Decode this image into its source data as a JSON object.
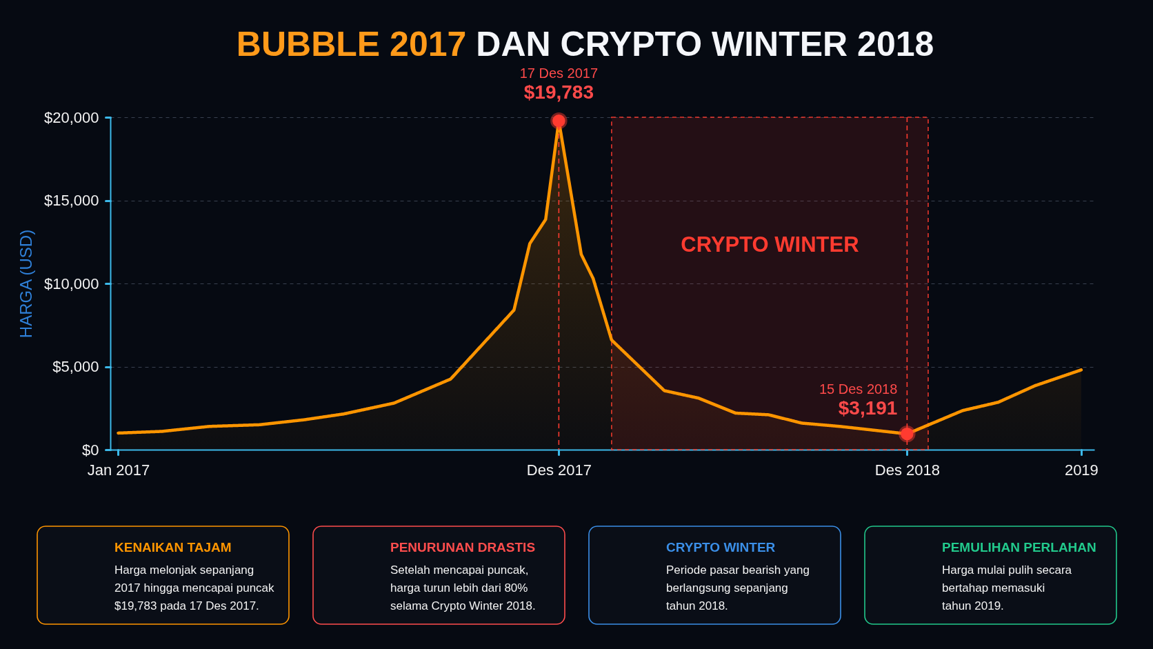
{
  "chart_data": [
    {
      "type": "area",
      "title": "BUBBLE 2017 DAN CRYPTO WINTER 2018",
      "ylabel": "HARGA (USD)",
      "x": [
        "2017-01-01",
        "2017-02-03",
        "2017-03-11",
        "2017-04-18",
        "2017-05-22",
        "2017-06-21",
        "2017-07-29",
        "2017-09-10",
        "2017-10-28",
        "2017-11-09",
        "2017-11-21",
        "2017-12-01",
        "2017-12-18",
        "2017-12-27",
        "2018-01-10",
        "2018-02-19",
        "2018-03-17",
        "2018-04-14",
        "2018-05-09",
        "2018-06-03",
        "2018-07-02",
        "2018-08-22",
        "2018-10-03",
        "2018-10-30",
        "2018-11-27",
        "2019-01-01"
      ],
      "series": [
        {
          "type": "area",
          "color": "#ff9500",
          "values": [
            1000,
            1100,
            1400,
            1500,
            1800,
            2150,
            2800,
            4250,
            8400,
            12400,
            13850,
            19783,
            11750,
            10300,
            6600,
            3550,
            3100,
            2200,
            2100,
            1600,
            1400,
            950,
            2350,
            2850,
            3850,
            4800
          ]
        },
        {
          "type": "scatter",
          "color": "#ff3b30",
          "marker": "circle",
          "x": [
            "2017-12-01",
            "2018-08-22"
          ],
          "values": [
            19783,
            950
          ]
        }
      ],
      "xlim": [
        "2016-12-26",
        "2019-01-11"
      ],
      "xticks": [
        {
          "value": "2017-01-01",
          "label": "Jan 2017"
        },
        {
          "value": "2017-12-01",
          "label": "Des 2017"
        },
        {
          "value": "2018-08-22",
          "label": "Des 2018"
        },
        {
          "value": "2019-01-01",
          "label": "2019"
        }
      ],
      "ylim": [
        0,
        20000
      ],
      "yticks": [
        {
          "value": 0,
          "label": "$0"
        },
        {
          "value": 5000,
          "label": "$5,000"
        },
        {
          "value": 10000,
          "label": "$10,000"
        },
        {
          "value": 15000,
          "label": "$15,000"
        },
        {
          "value": 20000,
          "label": "$20,000"
        }
      ],
      "grid": "y",
      "ref_lines": [
        {
          "axis": "x",
          "value": "2017-12-01",
          "color": "#ff3b30",
          "line_style": "dashed"
        },
        {
          "axis": "x",
          "value": "2018-08-22",
          "color": "#ff3b30",
          "line_style": "dashed"
        }
      ],
      "bands": [
        {
          "axis": "x",
          "from": "2018-01-10",
          "to": "2018-09-07",
          "label": "CRYPTO WINTER",
          "color": "#ff3b30"
        }
      ],
      "annotations": [
        {
          "text": "17 Des 2017",
          "x": "2017-12-01",
          "y": 19783
        },
        {
          "text": "$19,783",
          "x": "2017-12-01",
          "y": 19783
        },
        {
          "text": "15 Des 2018",
          "x": "2018-08-22",
          "y": 950
        },
        {
          "text": "$3,191",
          "x": "2018-08-22",
          "y": 950
        }
      ]
    },
    {
      "type": "other",
      "title": "KENAIKAN TAJAM",
      "color": "#ff9500",
      "annotations": [
        "Harga melonjak sepanjang",
        "2017 hingga mencapai puncak",
        "$19,783 pada 17 Des 2017."
      ]
    },
    {
      "type": "other",
      "title": "PENURUNAN DRASTIS",
      "color": "#ff4d4d",
      "annotations": [
        "Setelah mencapai puncak,",
        "harga turun lebih dari 80%",
        "selama Crypto Winter 2018."
      ]
    },
    {
      "type": "other",
      "title": "CRYPTO WINTER",
      "color": "#3b8fe8",
      "annotations": [
        "Periode pasar bearish yang",
        "berlangsung sepanjang",
        "tahun 2018."
      ]
    },
    {
      "type": "other",
      "title": "PEMULIHAN PERLAHAN",
      "color": "#22c98c",
      "annotations": [
        "Harga mulai pulih secara",
        "bertahap memasuki",
        "tahun 2019."
      ]
    }
  ]
}
